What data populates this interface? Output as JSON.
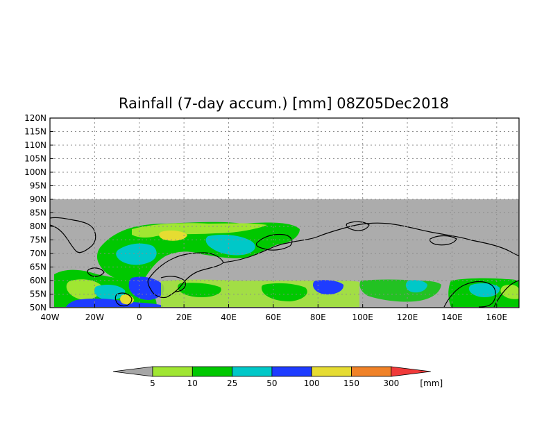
{
  "title": "Rainfall (7-day accum.) [mm] 08Z05Dec2018",
  "map": {
    "lon_range": [
      -40,
      170
    ],
    "lat_range": [
      50,
      120
    ],
    "data_max_lat": 90,
    "missing_color": "#acacac",
    "lat_ticks": [
      {
        "label": "120N",
        "value": 120
      },
      {
        "label": "115N",
        "value": 115
      },
      {
        "label": "110N",
        "value": 110
      },
      {
        "label": "105N",
        "value": 105
      },
      {
        "label": "100N",
        "value": 100
      },
      {
        "label": "95N",
        "value": 95
      },
      {
        "label": "90N",
        "value": 90
      },
      {
        "label": "85N",
        "value": 85
      },
      {
        "label": "80N",
        "value": 80
      },
      {
        "label": "75N",
        "value": 75
      },
      {
        "label": "70N",
        "value": 70
      },
      {
        "label": "65N",
        "value": 65
      },
      {
        "label": "60N",
        "value": 60
      },
      {
        "label": "55N",
        "value": 55
      },
      {
        "label": "50N",
        "value": 50
      }
    ],
    "lon_ticks": [
      {
        "label": "40W",
        "value": -40
      },
      {
        "label": "20W",
        "value": -20
      },
      {
        "label": "0",
        "value": 0
      },
      {
        "label": "20E",
        "value": 20
      },
      {
        "label": "40E",
        "value": 40
      },
      {
        "label": "60E",
        "value": 60
      },
      {
        "label": "80E",
        "value": 80
      },
      {
        "label": "100E",
        "value": 100
      },
      {
        "label": "120E",
        "value": 120
      },
      {
        "label": "140E",
        "value": 140
      },
      {
        "label": "160E",
        "value": 160
      }
    ]
  },
  "colorbar": {
    "unit": "[mm]",
    "arrow_low_color": "#a6a6a6",
    "arrow_high_color": "#f03a3a",
    "bins": [
      {
        "color": "#a0e632",
        "label": "5"
      },
      {
        "color": "#00c800",
        "label": "10"
      },
      {
        "color": "#00c8c8",
        "label": "25"
      },
      {
        "color": "#1e3cff",
        "label": "50"
      },
      {
        "color": "#e6dc32",
        "label": "100"
      },
      {
        "color": "#f08228",
        "label": "150"
      },
      {
        "color": "",
        "label": "300"
      }
    ]
  }
}
